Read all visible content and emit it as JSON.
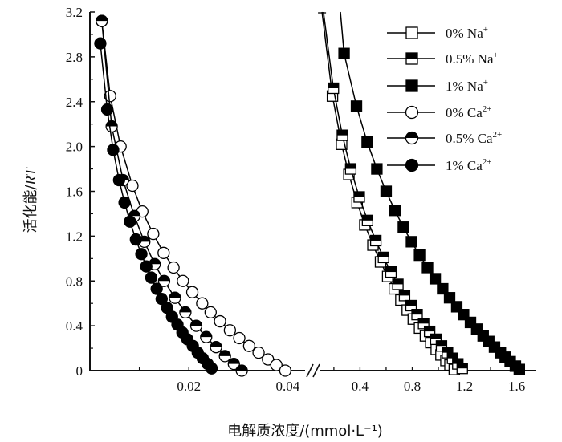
{
  "chart_data": {
    "type": "scatter",
    "title": "",
    "xlabel": "电解质浓度/(mmol·L⁻¹)",
    "ylabel_main": "活化能/",
    "ylabel_italic": "RT",
    "ylim": [
      0,
      3.2
    ],
    "yticks": [
      "0",
      "0.4",
      "0.8",
      "1.2",
      "1.6",
      "2.0",
      "2.4",
      "2.8",
      "3.2"
    ],
    "x_axis_broken": true,
    "x_segments": [
      {
        "range": [
          0,
          0.0435
        ],
        "ticks": [
          {
            "v": 0.02,
            "label": "0.02"
          },
          {
            "v": 0.04,
            "label": "0.04"
          }
        ],
        "minor_step": 0.01
      },
      {
        "range": [
          0.09,
          1.75
        ],
        "ticks": [
          {
            "v": 0.4,
            "label": "0.4"
          },
          {
            "v": 0.8,
            "label": "0.8"
          },
          {
            "v": 1.2,
            "label": "1.2"
          },
          {
            "v": 1.6,
            "label": "1.6"
          }
        ],
        "minor_step": 0.2
      }
    ],
    "legend_position": "top-right",
    "series": [
      {
        "name": "0% Na",
        "sup": "+",
        "marker": "square",
        "fill": "open",
        "segment": 1,
        "line_top": [
          0.109,
          3.2
        ],
        "x": [
          0.189,
          0.259,
          0.315,
          0.378,
          0.437,
          0.499,
          0.557,
          0.612,
          0.663,
          0.713,
          0.762,
          0.808,
          0.856,
          0.901,
          0.942,
          0.984,
          1.02,
          1.058,
          1.089,
          1.122
        ],
        "y": [
          2.45,
          2.02,
          1.75,
          1.5,
          1.3,
          1.12,
          0.97,
          0.84,
          0.73,
          0.63,
          0.54,
          0.46,
          0.38,
          0.31,
          0.25,
          0.19,
          0.14,
          0.09,
          0.05,
          0.01
        ]
      },
      {
        "name": "0.5% Na",
        "sup": "+",
        "marker": "square",
        "fill": "half",
        "segment": 1,
        "line_top": [
          0.12,
          3.2
        ],
        "x": [
          0.196,
          0.265,
          0.329,
          0.394,
          0.458,
          0.521,
          0.58,
          0.637,
          0.69,
          0.741,
          0.791,
          0.837,
          0.887,
          0.933,
          0.981,
          1.024,
          1.07,
          1.109,
          1.149,
          1.183
        ],
        "y": [
          2.52,
          2.1,
          1.8,
          1.55,
          1.34,
          1.16,
          1.01,
          0.88,
          0.77,
          0.67,
          0.58,
          0.5,
          0.42,
          0.35,
          0.28,
          0.22,
          0.16,
          0.11,
          0.06,
          0.02
        ]
      },
      {
        "name": "1% Na",
        "sup": "+",
        "marker": "square",
        "fill": "solid",
        "segment": 1,
        "line_top": [
          0.25,
          3.2
        ],
        "x": [
          0.278,
          0.373,
          0.455,
          0.529,
          0.6,
          0.667,
          0.732,
          0.794,
          0.856,
          0.917,
          0.976,
          1.033,
          1.086,
          1.141,
          1.193,
          1.246,
          1.294,
          1.343,
          1.386,
          1.43,
          1.475,
          1.512,
          1.55,
          1.59,
          1.62
        ],
        "y": [
          2.83,
          2.36,
          2.04,
          1.8,
          1.6,
          1.43,
          1.28,
          1.15,
          1.03,
          0.92,
          0.82,
          0.73,
          0.65,
          0.57,
          0.5,
          0.43,
          0.37,
          0.31,
          0.26,
          0.21,
          0.16,
          0.12,
          0.08,
          0.04,
          0.01
        ]
      },
      {
        "name": "0% Ca",
        "sup": "2+",
        "marker": "circle",
        "fill": "open",
        "segment": 0,
        "x": [
          0.0024,
          0.0041,
          0.0062,
          0.0086,
          0.0106,
          0.0128,
          0.0149,
          0.0169,
          0.0188,
          0.0207,
          0.0227,
          0.0244,
          0.0263,
          0.0283,
          0.0302,
          0.0322,
          0.0341,
          0.036,
          0.0377,
          0.0395
        ],
        "y": [
          3.12,
          2.45,
          2.0,
          1.65,
          1.42,
          1.22,
          1.05,
          0.92,
          0.8,
          0.7,
          0.6,
          0.52,
          0.44,
          0.36,
          0.29,
          0.22,
          0.16,
          0.1,
          0.05,
          0.0
        ]
      },
      {
        "name": "0.5% Ca",
        "sup": "2+",
        "marker": "circle",
        "fill": "half",
        "segment": 0,
        "x": [
          0.0024,
          0.0044,
          0.0067,
          0.009,
          0.011,
          0.0131,
          0.015,
          0.0172,
          0.0193,
          0.0215,
          0.0235,
          0.0255,
          0.0273,
          0.0291,
          0.0307
        ],
        "y": [
          3.12,
          2.18,
          1.7,
          1.38,
          1.15,
          0.95,
          0.8,
          0.65,
          0.52,
          0.4,
          0.3,
          0.21,
          0.13,
          0.06,
          0.0
        ]
      },
      {
        "name": "1% Ca",
        "sup": "2+",
        "marker": "circle",
        "fill": "solid",
        "segment": 0,
        "x": [
          0.0021,
          0.0035,
          0.0047,
          0.0059,
          0.007,
          0.0081,
          0.0093,
          0.0104,
          0.0114,
          0.0124,
          0.0135,
          0.0145,
          0.0156,
          0.0166,
          0.0177,
          0.0187,
          0.0197,
          0.0208,
          0.0218,
          0.0228,
          0.0238,
          0.0246
        ],
        "y": [
          2.92,
          2.33,
          1.97,
          1.7,
          1.5,
          1.33,
          1.17,
          1.04,
          0.93,
          0.83,
          0.73,
          0.64,
          0.56,
          0.48,
          0.41,
          0.34,
          0.28,
          0.22,
          0.16,
          0.11,
          0.06,
          0.02
        ]
      }
    ]
  }
}
